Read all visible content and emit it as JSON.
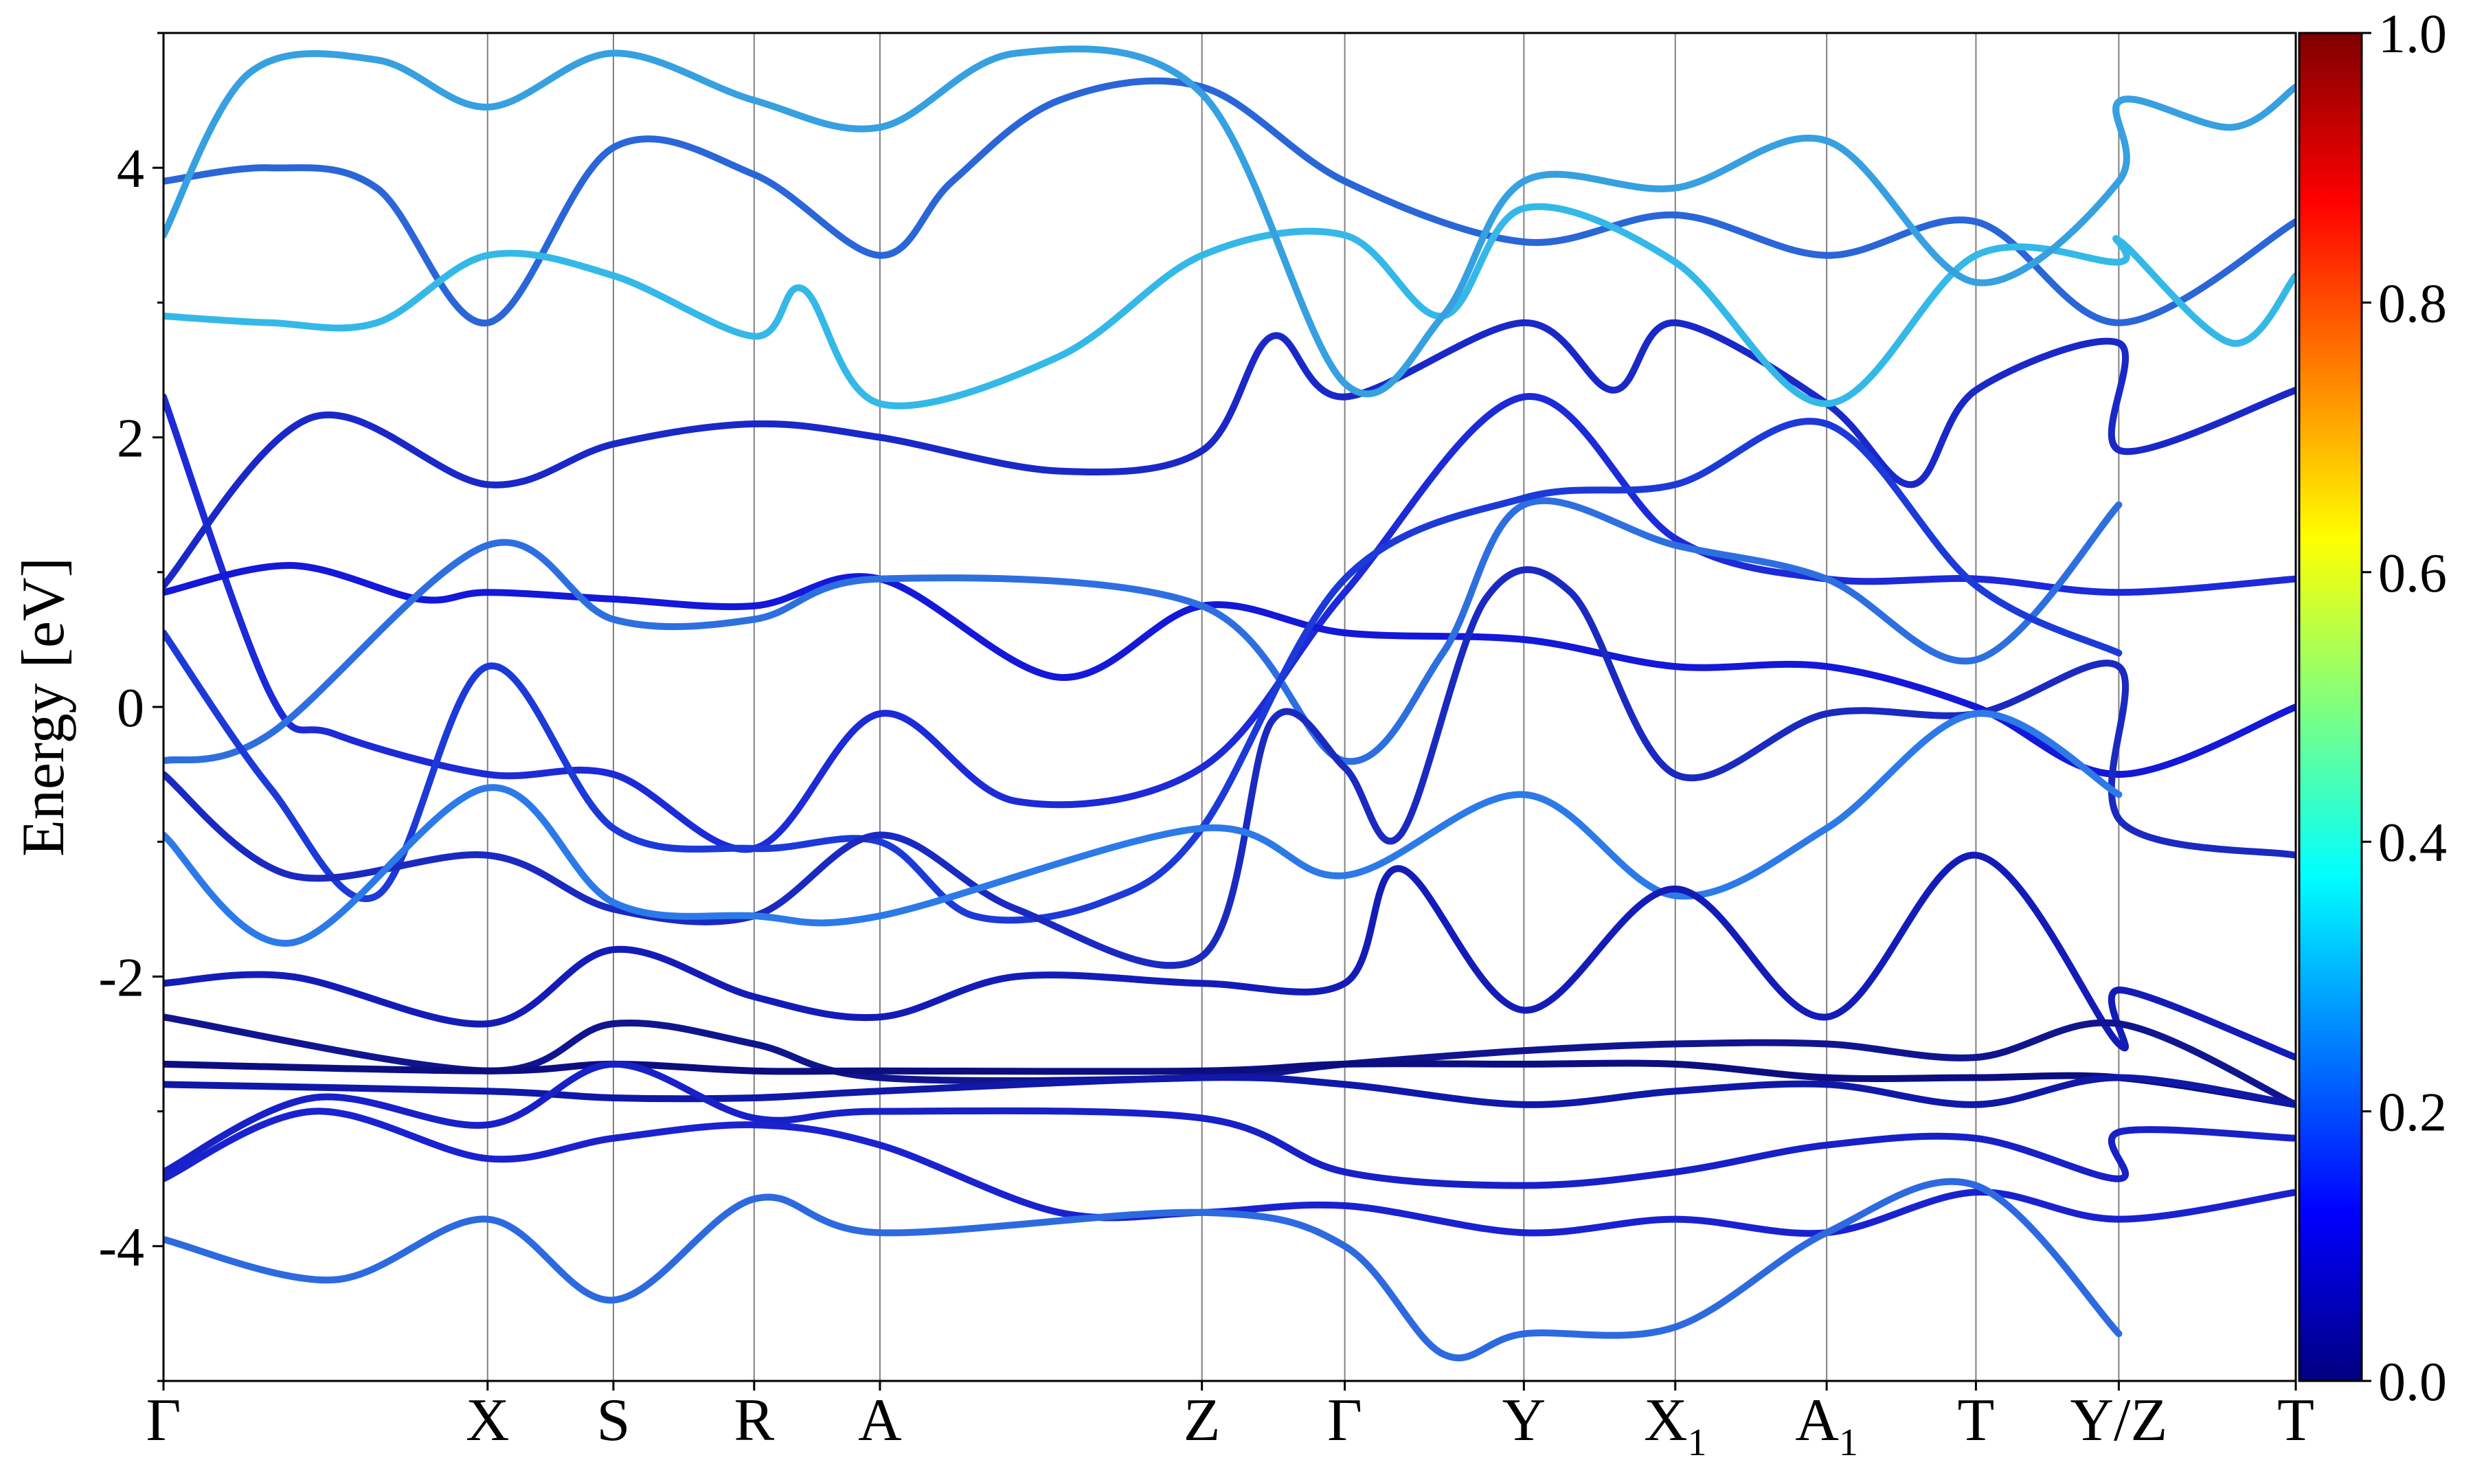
{
  "chart_data": {
    "type": "line",
    "title": "",
    "xlabel": "",
    "ylabel": "Energy [eV]",
    "ylim": [
      -5,
      5
    ],
    "grid": false,
    "y_ticks": [
      -4,
      -2,
      0,
      2,
      4
    ],
    "k_points": [
      {
        "label": "Γ",
        "sub": "",
        "pos": 0.0
      },
      {
        "label": "X",
        "sub": "",
        "pos": 0.152
      },
      {
        "label": "S",
        "sub": "",
        "pos": 0.211
      },
      {
        "label": "R",
        "sub": "",
        "pos": 0.277
      },
      {
        "label": "A",
        "sub": "",
        "pos": 0.336
      },
      {
        "label": "Z",
        "sub": "",
        "pos": 0.487
      },
      {
        "label": "Γ",
        "sub": "",
        "pos": 0.554
      },
      {
        "label": "Y",
        "sub": "",
        "pos": 0.638
      },
      {
        "label": "X",
        "sub": "1",
        "pos": 0.709
      },
      {
        "label": "A",
        "sub": "1",
        "pos": 0.78
      },
      {
        "label": "T",
        "sub": "",
        "pos": 0.85
      },
      {
        "label": "Y/Z",
        "sub": "",
        "pos": 0.917
      },
      {
        "label": "T",
        "sub": "",
        "pos": 1.0
      }
    ],
    "colorbar": {
      "ticks": [
        "0.0",
        "0.2",
        "0.4",
        "0.6",
        "0.8",
        "1.0"
      ],
      "range": [
        0,
        1
      ],
      "colormap": [
        "#00007f",
        "#0000ff",
        "#007fff",
        "#00ffff",
        "#7fff7f",
        "#ffff00",
        "#ff7f00",
        "#ff0000",
        "#7f0000"
      ]
    },
    "series": [
      {
        "color": "#1c2ad8",
        "points": [
          [
            0,
            2.3
          ],
          [
            0.05,
            0.1
          ],
          [
            0.08,
            -0.2
          ],
          [
            0.152,
            -0.5
          ],
          [
            0.211,
            -0.5
          ],
          [
            0.277,
            -1.05
          ],
          [
            0.336,
            -0.05
          ],
          [
            0.4,
            -0.7
          ],
          [
            0.487,
            -0.45
          ],
          [
            0.554,
            0.85
          ],
          [
            0.638,
            2.3
          ],
          [
            0.709,
            1.25
          ],
          [
            0.78,
            0.95
          ],
          [
            0.85,
            0.95
          ],
          [
            0.917,
            0.85
          ],
          [
            1.0,
            0.95
          ]
        ]
      },
      {
        "color": "#1418d8",
        "points": [
          [
            0,
            0.85
          ],
          [
            0.06,
            1.05
          ],
          [
            0.12,
            0.8
          ],
          [
            0.152,
            0.85
          ],
          [
            0.211,
            0.8
          ],
          [
            0.277,
            0.75
          ],
          [
            0.336,
            0.95
          ],
          [
            0.42,
            0.22
          ],
          [
            0.487,
            0.75
          ],
          [
            0.554,
            0.55
          ],
          [
            0.638,
            0.5
          ],
          [
            0.709,
            0.3
          ],
          [
            0.78,
            0.3
          ],
          [
            0.85,
            0.0
          ],
          [
            0.917,
            -0.5
          ],
          [
            1.0,
            0.0
          ]
        ]
      },
      {
        "color": "#1a28c8",
        "points": [
          [
            0,
            0.9
          ],
          [
            0.07,
            2.15
          ],
          [
            0.152,
            1.65
          ],
          [
            0.211,
            1.95
          ],
          [
            0.277,
            2.1
          ],
          [
            0.336,
            2.0
          ],
          [
            0.42,
            1.75
          ],
          [
            0.487,
            1.9
          ],
          [
            0.52,
            2.75
          ],
          [
            0.554,
            2.3
          ],
          [
            0.638,
            2.85
          ],
          [
            0.68,
            2.35
          ],
          [
            0.709,
            2.85
          ],
          [
            0.78,
            2.25
          ],
          [
            0.82,
            1.65
          ],
          [
            0.85,
            2.35
          ],
          [
            0.917,
            2.7
          ],
          [
            0.918,
            1.9
          ],
          [
            1.0,
            2.35
          ]
        ]
      },
      {
        "color": "#2e6fe0",
        "points": [
          [
            0,
            -0.4
          ],
          [
            0.05,
            -0.2
          ],
          [
            0.152,
            1.2
          ],
          [
            0.211,
            0.65
          ],
          [
            0.277,
            0.65
          ],
          [
            0.336,
            0.95
          ],
          [
            0.487,
            0.75
          ],
          [
            0.554,
            -0.4
          ],
          [
            0.6,
            0.4
          ],
          [
            0.638,
            1.5
          ],
          [
            0.709,
            1.2
          ],
          [
            0.78,
            0.95
          ],
          [
            0.85,
            0.35
          ],
          [
            0.917,
            1.5
          ]
        ]
      },
      {
        "color": "#1c3ad8",
        "points": [
          [
            0,
            0.55
          ],
          [
            0.05,
            -0.6
          ],
          [
            0.1,
            -1.4
          ],
          [
            0.152,
            0.3
          ],
          [
            0.211,
            -0.9
          ],
          [
            0.277,
            -1.05
          ],
          [
            0.336,
            -1.0
          ],
          [
            0.38,
            -1.55
          ],
          [
            0.44,
            -1.45
          ],
          [
            0.487,
            -0.9
          ],
          [
            0.554,
            0.95
          ],
          [
            0.638,
            1.55
          ],
          [
            0.709,
            1.65
          ],
          [
            0.78,
            2.1
          ],
          [
            0.85,
            0.9
          ],
          [
            0.917,
            0.4
          ]
        ]
      },
      {
        "color": "#1a2ac0",
        "points": [
          [
            0,
            -0.5
          ],
          [
            0.06,
            -1.25
          ],
          [
            0.152,
            -1.1
          ],
          [
            0.211,
            -1.5
          ],
          [
            0.277,
            -1.55
          ],
          [
            0.336,
            -0.95
          ],
          [
            0.4,
            -1.5
          ],
          [
            0.487,
            -1.85
          ],
          [
            0.52,
            -0.1
          ],
          [
            0.554,
            -0.45
          ],
          [
            0.58,
            -0.95
          ],
          [
            0.62,
            0.8
          ],
          [
            0.66,
            0.85
          ],
          [
            0.709,
            -0.5
          ],
          [
            0.78,
            -0.05
          ],
          [
            0.85,
            -0.05
          ],
          [
            0.917,
            0.3
          ],
          [
            0.918,
            -0.85
          ],
          [
            1.0,
            -1.1
          ]
        ]
      },
      {
        "color": "#2c7ae8",
        "points": [
          [
            0,
            -0.95
          ],
          [
            0.06,
            -1.75
          ],
          [
            0.152,
            -0.6
          ],
          [
            0.211,
            -1.45
          ],
          [
            0.277,
            -1.55
          ],
          [
            0.336,
            -1.55
          ],
          [
            0.487,
            -0.9
          ],
          [
            0.554,
            -1.25
          ],
          [
            0.638,
            -0.65
          ],
          [
            0.709,
            -1.4
          ],
          [
            0.78,
            -0.9
          ],
          [
            0.85,
            -0.05
          ],
          [
            0.917,
            -0.65
          ]
        ]
      },
      {
        "color": "#141cb8",
        "points": [
          [
            0,
            -2.05
          ],
          [
            0.06,
            -2.0
          ],
          [
            0.152,
            -2.35
          ],
          [
            0.211,
            -1.8
          ],
          [
            0.277,
            -2.15
          ],
          [
            0.336,
            -2.3
          ],
          [
            0.4,
            -2.0
          ],
          [
            0.487,
            -2.05
          ],
          [
            0.554,
            -2.05
          ],
          [
            0.58,
            -1.2
          ],
          [
            0.638,
            -2.25
          ],
          [
            0.709,
            -1.35
          ],
          [
            0.78,
            -2.3
          ],
          [
            0.85,
            -1.1
          ],
          [
            0.917,
            -2.5
          ],
          [
            0.918,
            -2.1
          ],
          [
            1.0,
            -2.6
          ]
        ]
      },
      {
        "color": "#10158e",
        "points": [
          [
            0,
            -2.3
          ],
          [
            0.152,
            -2.7
          ],
          [
            0.211,
            -2.35
          ],
          [
            0.277,
            -2.5
          ],
          [
            0.336,
            -2.75
          ],
          [
            0.487,
            -2.75
          ],
          [
            0.554,
            -2.65
          ],
          [
            0.638,
            -2.55
          ],
          [
            0.709,
            -2.5
          ],
          [
            0.78,
            -2.5
          ],
          [
            0.85,
            -2.6
          ],
          [
            0.917,
            -2.35
          ],
          [
            1.0,
            -2.95
          ]
        ]
      },
      {
        "color": "#0c0e80",
        "points": [
          [
            0,
            -2.65
          ],
          [
            0.152,
            -2.7
          ],
          [
            0.211,
            -2.65
          ],
          [
            0.277,
            -2.7
          ],
          [
            0.336,
            -2.7
          ],
          [
            0.487,
            -2.7
          ],
          [
            0.554,
            -2.65
          ],
          [
            0.638,
            -2.65
          ],
          [
            0.709,
            -2.65
          ],
          [
            0.78,
            -2.75
          ],
          [
            0.85,
            -2.75
          ],
          [
            0.917,
            -2.75
          ],
          [
            1.0,
            -2.95
          ]
        ]
      },
      {
        "color": "#1018a8",
        "points": [
          [
            0,
            -2.8
          ],
          [
            0.152,
            -2.85
          ],
          [
            0.211,
            -2.9
          ],
          [
            0.277,
            -2.9
          ],
          [
            0.336,
            -2.85
          ],
          [
            0.487,
            -2.75
          ],
          [
            0.554,
            -2.8
          ],
          [
            0.638,
            -2.95
          ],
          [
            0.709,
            -2.85
          ],
          [
            0.78,
            -2.8
          ],
          [
            0.85,
            -2.95
          ],
          [
            0.917,
            -2.75
          ],
          [
            1.0,
            -2.95
          ]
        ]
      },
      {
        "color": "#1820c8",
        "points": [
          [
            0,
            -3.45
          ],
          [
            0.07,
            -2.9
          ],
          [
            0.152,
            -3.1
          ],
          [
            0.211,
            -2.65
          ],
          [
            0.277,
            -3.05
          ],
          [
            0.336,
            -3.0
          ],
          [
            0.487,
            -3.05
          ],
          [
            0.554,
            -3.45
          ],
          [
            0.638,
            -3.55
          ],
          [
            0.709,
            -3.45
          ],
          [
            0.78,
            -3.25
          ],
          [
            0.85,
            -3.2
          ],
          [
            0.917,
            -3.5
          ],
          [
            0.918,
            -3.15
          ],
          [
            1.0,
            -3.2
          ]
        ]
      },
      {
        "color": "#1a22d0",
        "points": [
          [
            0,
            -3.5
          ],
          [
            0.07,
            -3.0
          ],
          [
            0.152,
            -3.35
          ],
          [
            0.211,
            -3.2
          ],
          [
            0.277,
            -3.1
          ],
          [
            0.336,
            -3.25
          ],
          [
            0.42,
            -3.75
          ],
          [
            0.487,
            -3.75
          ],
          [
            0.554,
            -3.7
          ],
          [
            0.638,
            -3.9
          ],
          [
            0.709,
            -3.8
          ],
          [
            0.78,
            -3.9
          ],
          [
            0.85,
            -3.6
          ],
          [
            0.917,
            -3.8
          ],
          [
            1.0,
            -3.6
          ]
        ]
      },
      {
        "color": "#2d6ae0",
        "points": [
          [
            0,
            -3.95
          ],
          [
            0.08,
            -4.25
          ],
          [
            0.152,
            -3.8
          ],
          [
            0.211,
            -4.4
          ],
          [
            0.277,
            -3.65
          ],
          [
            0.336,
            -3.9
          ],
          [
            0.487,
            -3.75
          ],
          [
            0.554,
            -4.0
          ],
          [
            0.6,
            -4.8
          ],
          [
            0.638,
            -4.65
          ],
          [
            0.709,
            -4.6
          ],
          [
            0.78,
            -3.9
          ],
          [
            0.85,
            -3.55
          ],
          [
            0.917,
            -4.65
          ]
        ]
      },
      {
        "color": "#2a66d8",
        "points": [
          [
            0,
            3.9
          ],
          [
            0.05,
            4.0
          ],
          [
            0.1,
            3.85
          ],
          [
            0.152,
            2.85
          ],
          [
            0.211,
            4.15
          ],
          [
            0.277,
            3.95
          ],
          [
            0.336,
            3.35
          ],
          [
            0.37,
            3.9
          ],
          [
            0.42,
            4.5
          ],
          [
            0.487,
            4.6
          ],
          [
            0.554,
            3.9
          ],
          [
            0.638,
            3.45
          ],
          [
            0.709,
            3.65
          ],
          [
            0.78,
            3.35
          ],
          [
            0.85,
            3.6
          ],
          [
            0.917,
            2.85
          ],
          [
            1.0,
            3.6
          ]
        ]
      },
      {
        "color": "#34b8e8",
        "points": [
          [
            0,
            2.9
          ],
          [
            0.05,
            2.85
          ],
          [
            0.1,
            2.85
          ],
          [
            0.152,
            3.35
          ],
          [
            0.211,
            3.2
          ],
          [
            0.277,
            2.75
          ],
          [
            0.3,
            3.1
          ],
          [
            0.336,
            2.25
          ],
          [
            0.42,
            2.6
          ],
          [
            0.487,
            3.35
          ],
          [
            0.554,
            3.5
          ],
          [
            0.6,
            2.9
          ],
          [
            0.638,
            3.7
          ],
          [
            0.709,
            3.3
          ],
          [
            0.78,
            2.25
          ],
          [
            0.85,
            3.35
          ],
          [
            0.917,
            3.3
          ],
          [
            0.918,
            3.45
          ],
          [
            0.97,
            2.7
          ],
          [
            1.0,
            3.2
          ]
        ]
      },
      {
        "color": "#36a0e0",
        "points": [
          [
            0,
            3.5
          ],
          [
            0.04,
            4.7
          ],
          [
            0.1,
            4.8
          ],
          [
            0.152,
            4.45
          ],
          [
            0.211,
            4.85
          ],
          [
            0.277,
            4.5
          ],
          [
            0.336,
            4.3
          ],
          [
            0.4,
            4.85
          ],
          [
            0.487,
            4.55
          ],
          [
            0.554,
            2.4
          ],
          [
            0.6,
            2.9
          ],
          [
            0.638,
            3.9
          ],
          [
            0.709,
            3.85
          ],
          [
            0.78,
            4.2
          ],
          [
            0.85,
            3.15
          ],
          [
            0.917,
            3.9
          ],
          [
            0.918,
            4.5
          ],
          [
            0.97,
            4.3
          ],
          [
            1.0,
            4.6
          ]
        ]
      }
    ]
  }
}
